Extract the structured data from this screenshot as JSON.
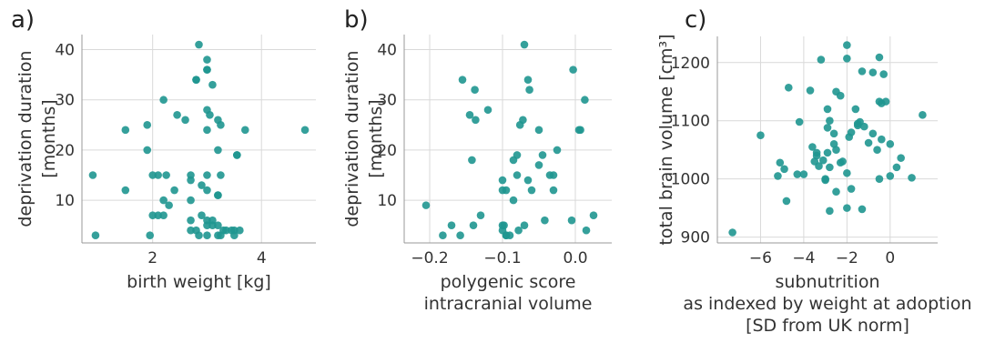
{
  "colors": {
    "marker": "#1f9690",
    "grid": "#d9d9d9",
    "spine": "#999999"
  },
  "chart_data": [
    {
      "type": "scatter",
      "panel_label": "a)",
      "xlabel": [
        "birth weight [kg]"
      ],
      "ylabel": [
        "deprivation duration",
        "[months]"
      ],
      "xlim": [
        0.7,
        5.0
      ],
      "ylim": [
        1.5,
        43.0
      ],
      "xticks": [
        2,
        4
      ],
      "xticklabels": [
        "2",
        "4"
      ],
      "yticks": [
        10,
        20,
        30,
        40
      ],
      "yticklabels": [
        "10",
        "20",
        "30",
        "40"
      ],
      "grid": true,
      "x": [
        2.85,
        3.0,
        3.0,
        3.0,
        2.8,
        2.8,
        3.1,
        2.2,
        3.0,
        2.45,
        3.05,
        3.2,
        3.25,
        1.5,
        1.9,
        2.6,
        3.0,
        3.7,
        4.8,
        3.55,
        1.9,
        2.1,
        2.25,
        2.7,
        3.0,
        3.25,
        2.7,
        3.2,
        0.9,
        2.0,
        3.55,
        1.5,
        2.4,
        2.9,
        3.0,
        3.2,
        2.2,
        2.7,
        3.2,
        2.3,
        2.0,
        2.1,
        3.0,
        3.1,
        2.2,
        2.7,
        2.9,
        3.0,
        3.1,
        3.2,
        3.3,
        3.35,
        3.45,
        3.5,
        3.6,
        2.7,
        2.8,
        3.0,
        0.95,
        1.95,
        2.85,
        3.2,
        3.25,
        3.5
      ],
      "y": [
        41,
        38,
        36,
        36,
        34,
        34,
        33,
        30,
        28,
        27,
        27,
        26,
        25,
        24,
        25,
        26,
        24,
        24,
        24,
        19,
        20,
        15,
        15,
        14,
        15,
        15,
        15,
        20,
        15,
        15,
        19,
        12,
        12,
        13,
        12,
        11,
        10,
        10,
        11,
        9,
        7,
        7,
        6,
        6,
        7,
        6,
        7,
        5,
        5,
        5,
        4,
        4,
        4,
        4,
        4,
        4,
        4,
        3,
        3,
        3,
        3,
        3,
        3,
        3
      ]
    },
    {
      "type": "scatter",
      "panel_label": "b)",
      "xlabel": [
        "polygenic score",
        "intracranial volume"
      ],
      "ylabel": [
        "deprivation duration",
        "[months]"
      ],
      "xlim": [
        -0.235,
        0.05
      ],
      "ylim": [
        1.5,
        43.0
      ],
      "xticks": [
        -0.2,
        -0.1,
        0.0
      ],
      "xticklabels": [
        "−0.2",
        "−0.1",
        "0.0"
      ],
      "yticks": [
        10,
        20,
        30,
        40
      ],
      "yticklabels": [
        "10",
        "20",
        "30",
        "40"
      ],
      "grid": true,
      "x": [
        -0.07,
        -0.003,
        -0.065,
        -0.155,
        -0.063,
        -0.138,
        -0.12,
        0.013,
        -0.145,
        -0.072,
        -0.076,
        -0.137,
        -0.05,
        0.007,
        0.005,
        -0.08,
        -0.025,
        -0.045,
        -0.085,
        -0.142,
        -0.05,
        -0.035,
        -0.03,
        -0.065,
        -0.1,
        -0.08,
        -0.06,
        -0.095,
        -0.03,
        -0.1,
        -0.205,
        -0.085,
        -0.13,
        -0.14,
        -0.17,
        -0.07,
        -0.1,
        -0.042,
        -0.005,
        0.025,
        -0.098,
        -0.158,
        -0.182,
        -0.1,
        -0.095,
        -0.078,
        -0.09,
        -0.095,
        0.015
      ],
      "y": [
        41,
        36,
        34,
        34,
        32,
        32,
        28,
        30,
        27,
        26,
        25,
        26,
        24,
        24,
        24,
        19,
        20,
        19,
        18,
        18,
        17,
        15,
        15,
        14,
        14,
        15,
        12,
        12,
        12,
        12,
        9,
        10,
        7,
        5,
        5,
        5,
        5,
        6,
        6,
        7,
        5,
        3,
        3,
        4,
        3,
        4,
        3,
        3,
        4
      ]
    },
    {
      "type": "scatter",
      "panel_label": "c)",
      "xlabel": [
        "subnutrition",
        "as indexed by weight at adoption",
        "[SD from UK norm]"
      ],
      "ylabel": [
        "total brain volume [cm³]"
      ],
      "xlim": [
        -8.0,
        2.2
      ],
      "ylim": [
        890,
        1245
      ],
      "xticks": [
        -6,
        -4,
        -2,
        0
      ],
      "xticklabels": [
        "−6",
        "−4",
        "−2",
        "0"
      ],
      "yticks": [
        900,
        1000,
        1100,
        1200
      ],
      "yticklabels": [
        "900",
        "1000",
        "1100",
        "1200"
      ],
      "grid": true,
      "x": [
        -2.0,
        -2.0,
        -3.2,
        -0.5,
        -0.3,
        -1.3,
        -0.8,
        -0.2,
        -3.7,
        -2.5,
        -0.5,
        -4.7,
        -2.3,
        -0.4,
        -2.9,
        -2.8,
        -1.6,
        -1.4,
        -1.2,
        1.5,
        -1.8,
        -4.2,
        -2.9,
        -6.0,
        -2.6,
        -1.9,
        -1.5,
        -1.5,
        -0.8,
        -2.6,
        -1.0,
        -0.6,
        -0.4,
        0.0,
        -3.6,
        -3.4,
        -2.9,
        -3.4,
        -2.5,
        -2.2,
        -3.1,
        0.5,
        -3.5,
        -5.1,
        -3.3,
        -2.8,
        -2.3,
        -4.0,
        -4.3,
        -3.0,
        -4.9,
        -5.2,
        -2.0,
        0.0,
        -3.0,
        -0.5,
        0.3,
        1.0,
        -1.8,
        -4.8,
        -2.5,
        -2.8,
        -1.3,
        -7.3,
        -2.0
      ],
      "y": [
        1230,
        1207,
        1205,
        1209,
        1180,
        1185,
        1183,
        1133,
        1152,
        1150,
        1133,
        1157,
        1143,
        1130,
        1120,
        1100,
        1120,
        1098,
        1090,
        1110,
        1080,
        1098,
        1088,
        1075,
        1078,
        1072,
        1095,
        1092,
        1078,
        1060,
        1062,
        1050,
        1068,
        1060,
        1055,
        1045,
        1045,
        1040,
        1050,
        1030,
        1032,
        1036,
        1030,
        1028,
        1022,
        1020,
        1028,
        1008,
        1008,
        1000,
        1017,
        1005,
        1010,
        1005,
        998,
        1000,
        1020,
        1002,
        983,
        962,
        978,
        945,
        948,
        908,
        950
      ]
    }
  ]
}
